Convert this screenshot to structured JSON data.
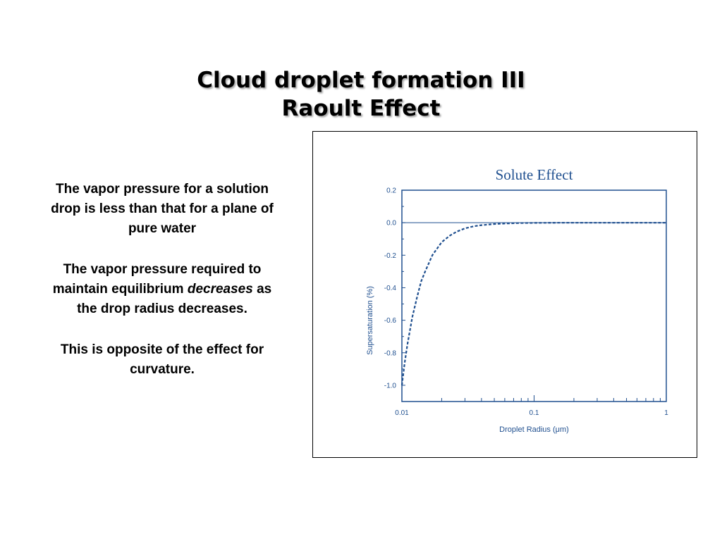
{
  "slide": {
    "title_line1": "Cloud droplet formation III",
    "title_line2": "Raoult Effect",
    "paragraphs": {
      "p1": "The vapor pressure for a solution drop is less than that for a plane of pure water",
      "p2_em": "decreases",
      "p2_before": "The vapor pressure required to maintain equilibrium",
      "p2_after": "as the drop radius decreases.",
      "p3": "This is opposite of the effect for curvature."
    }
  },
  "chart_data": {
    "type": "line",
    "title": "Solute Effect",
    "xlabel": "Droplet Radius (μm)",
    "ylabel": "Supersaturation (%)",
    "x_scale": "log",
    "xlim": [
      0.01,
      1
    ],
    "ylim": [
      -1.1,
      0.2
    ],
    "x_ticks": [
      "0.01",
      "0.1",
      "1"
    ],
    "y_ticks": [
      "0.2",
      "0.0",
      "-0.2",
      "-0.4",
      "-0.6",
      "-0.8",
      "-1.0"
    ],
    "grid": false,
    "series": [
      {
        "x": [
          0.01,
          0.0105,
          0.011,
          0.012,
          0.013,
          0.014,
          0.015,
          0.017,
          0.02,
          0.023,
          0.026,
          0.03,
          0.035,
          0.04,
          0.05,
          0.06,
          0.08,
          0.1,
          0.15,
          0.2,
          0.3,
          0.5,
          1
        ],
        "y": [
          -1.0,
          -0.86,
          -0.75,
          -0.58,
          -0.46,
          -0.36,
          -0.3,
          -0.2,
          -0.12,
          -0.08,
          -0.055,
          -0.035,
          -0.022,
          -0.015,
          -0.008,
          -0.005,
          -0.002,
          -0.001,
          -0.0003,
          -0.0001,
          0,
          0,
          0
        ],
        "style": "dashed",
        "color": "#1f4f8f"
      }
    ],
    "colors": {
      "axis": "#1f4f8f",
      "text": "#1f4f8f"
    }
  }
}
